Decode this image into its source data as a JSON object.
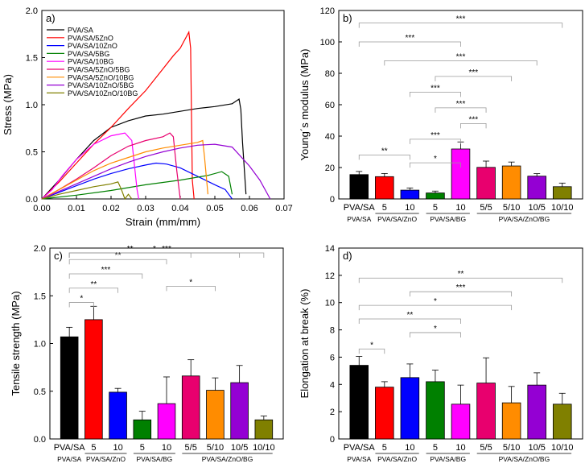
{
  "chart_data": [
    {
      "panel": "a)",
      "type": "line",
      "xlabel": "Strain (mm/mm)",
      "ylabel": "Stress (MPa)",
      "xlim": [
        0,
        0.07
      ],
      "ylim": [
        0,
        2.0
      ],
      "xticks": [
        "0.00",
        "0.01",
        "0.02",
        "0.03",
        "0.04",
        "0.05",
        "0.06",
        "0.07"
      ],
      "yticks": [
        "0.0",
        "0.5",
        "1.0",
        "1.5",
        "2.0"
      ],
      "legend_position": "top-left",
      "series": [
        {
          "name": "PVA/SA",
          "color": "#000000",
          "points": [
            [
              0,
              0
            ],
            [
              0.005,
              0.2
            ],
            [
              0.01,
              0.42
            ],
            [
              0.015,
              0.62
            ],
            [
              0.02,
              0.76
            ],
            [
              0.025,
              0.83
            ],
            [
              0.03,
              0.88
            ],
            [
              0.035,
              0.9
            ],
            [
              0.04,
              0.93
            ],
            [
              0.045,
              0.96
            ],
            [
              0.05,
              0.98
            ],
            [
              0.055,
              1.01
            ],
            [
              0.057,
              1.06
            ],
            [
              0.0575,
              0.95
            ],
            [
              0.058,
              0.6
            ],
            [
              0.059,
              0.05
            ]
          ]
        },
        {
          "name": "PVA/SA/5ZnO",
          "color": "#ff0000",
          "points": [
            [
              0,
              0
            ],
            [
              0.005,
              0.18
            ],
            [
              0.01,
              0.38
            ],
            [
              0.015,
              0.58
            ],
            [
              0.02,
              0.76
            ],
            [
              0.025,
              0.96
            ],
            [
              0.03,
              1.15
            ],
            [
              0.035,
              1.38
            ],
            [
              0.038,
              1.52
            ],
            [
              0.04,
              1.6
            ],
            [
              0.0425,
              1.77
            ],
            [
              0.043,
              1.6
            ],
            [
              0.0435,
              0.2
            ],
            [
              0.044,
              0
            ]
          ]
        },
        {
          "name": "PVA/SA/10ZnO",
          "color": "#0000ff",
          "points": [
            [
              0,
              0
            ],
            [
              0.005,
              0.07
            ],
            [
              0.01,
              0.14
            ],
            [
              0.015,
              0.21
            ],
            [
              0.02,
              0.27
            ],
            [
              0.025,
              0.32
            ],
            [
              0.03,
              0.36
            ],
            [
              0.033,
              0.38
            ],
            [
              0.036,
              0.37
            ],
            [
              0.04,
              0.33
            ],
            [
              0.045,
              0.24
            ],
            [
              0.05,
              0.15
            ],
            [
              0.053,
              0.1
            ],
            [
              0.055,
              0
            ]
          ]
        },
        {
          "name": "PVA/SA/5BG",
          "color": "#008000",
          "points": [
            [
              0,
              0
            ],
            [
              0.01,
              0.04
            ],
            [
              0.02,
              0.09
            ],
            [
              0.03,
              0.15
            ],
            [
              0.04,
              0.2
            ],
            [
              0.048,
              0.25
            ],
            [
              0.052,
              0.29
            ],
            [
              0.054,
              0.24
            ],
            [
              0.055,
              0.05
            ]
          ]
        },
        {
          "name": "PVA/SA/10BG",
          "color": "#ff00ff",
          "points": [
            [
              0,
              0
            ],
            [
              0.003,
              0.1
            ],
            [
              0.006,
              0.25
            ],
            [
              0.01,
              0.42
            ],
            [
              0.015,
              0.58
            ],
            [
              0.02,
              0.67
            ],
            [
              0.024,
              0.7
            ],
            [
              0.026,
              0.62
            ],
            [
              0.0275,
              0.1
            ],
            [
              0.028,
              0
            ]
          ]
        },
        {
          "name": "PVA/SA/5ZnO/5BG",
          "color": "#e8006e",
          "points": [
            [
              0,
              0
            ],
            [
              0.005,
              0.1
            ],
            [
              0.01,
              0.21
            ],
            [
              0.015,
              0.33
            ],
            [
              0.02,
              0.46
            ],
            [
              0.025,
              0.56
            ],
            [
              0.03,
              0.62
            ],
            [
              0.035,
              0.66
            ],
            [
              0.037,
              0.7
            ],
            [
              0.038,
              0.66
            ],
            [
              0.039,
              0.3
            ],
            [
              0.04,
              0
            ]
          ]
        },
        {
          "name": "PVA/SA/5ZnO/10BG",
          "color": "#ff8c00",
          "points": [
            [
              0,
              0
            ],
            [
              0.005,
              0.1
            ],
            [
              0.01,
              0.2
            ],
            [
              0.015,
              0.3
            ],
            [
              0.02,
              0.38
            ],
            [
              0.025,
              0.44
            ],
            [
              0.03,
              0.5
            ],
            [
              0.035,
              0.54
            ],
            [
              0.04,
              0.57
            ],
            [
              0.045,
              0.6
            ],
            [
              0.0465,
              0.62
            ],
            [
              0.047,
              0.45
            ],
            [
              0.048,
              0.05
            ]
          ]
        },
        {
          "name": "PVA/SA/10ZnO/5BG",
          "color": "#9400d3",
          "points": [
            [
              0,
              0
            ],
            [
              0.005,
              0.08
            ],
            [
              0.01,
              0.16
            ],
            [
              0.015,
              0.24
            ],
            [
              0.02,
              0.32
            ],
            [
              0.025,
              0.39
            ],
            [
              0.03,
              0.45
            ],
            [
              0.035,
              0.5
            ],
            [
              0.04,
              0.54
            ],
            [
              0.045,
              0.57
            ],
            [
              0.05,
              0.58
            ],
            [
              0.055,
              0.55
            ],
            [
              0.06,
              0.35
            ],
            [
              0.063,
              0.2
            ],
            [
              0.066,
              0
            ]
          ]
        },
        {
          "name": "PVA/SA/10ZnO/10BG",
          "color": "#808000",
          "points": [
            [
              0,
              0
            ],
            [
              0.005,
              0.05
            ],
            [
              0.01,
              0.09
            ],
            [
              0.015,
              0.13
            ],
            [
              0.02,
              0.16
            ],
            [
              0.022,
              0.18
            ],
            [
              0.023,
              0.1
            ],
            [
              0.024,
              0.0
            ],
            [
              0.025,
              0.05
            ],
            [
              0.026,
              0.0
            ]
          ]
        }
      ]
    },
    {
      "panel": "b)",
      "type": "bar",
      "ylabel": "Young´s modulus (MPa)",
      "ylim": [
        0,
        120
      ],
      "yticks": [
        "0",
        "20",
        "40",
        "60",
        "80",
        "100",
        "120"
      ],
      "categories": [
        "PVA/SA",
        "5",
        "10",
        "5",
        "10",
        "5/5",
        "5/10",
        "10/5",
        "10/10"
      ],
      "values": [
        15.5,
        14.2,
        5.6,
        3.8,
        31.8,
        20.1,
        21.0,
        14.5,
        7.8
      ],
      "errors": [
        2.0,
        2.0,
        1.4,
        1.2,
        4.5,
        4.0,
        2.5,
        1.6,
        2.3
      ],
      "colors": [
        "#000000",
        "#ff0000",
        "#0000ff",
        "#008000",
        "#ff00ff",
        "#e8006e",
        "#ff8c00",
        "#9400d3",
        "#808000"
      ],
      "group_labels": [
        "PVA/SA/ZnO",
        "PVA/SA/BG",
        "PVA/SA/ZnO/BG"
      ],
      "significance": [
        {
          "from": 2,
          "to": 4,
          "y": 23,
          "label": "*"
        },
        {
          "from": 0,
          "to": 2,
          "y": 28,
          "label": "**"
        },
        {
          "from": 2,
          "to": 4,
          "y": 38,
          "label": "***"
        },
        {
          "from": 4,
          "to": 5,
          "y": 48,
          "label": "***"
        },
        {
          "from": 3,
          "to": 5,
          "y": 58,
          "label": "***"
        },
        {
          "from": 4,
          "to": 2,
          "y": 68,
          "label": "***"
        },
        {
          "from": 3,
          "to": 6,
          "y": 78,
          "label": "***"
        },
        {
          "from": 1,
          "to": 7,
          "y": 88,
          "label": "***"
        },
        {
          "from": 0,
          "to": 4,
          "y": 100,
          "label": "***"
        },
        {
          "from": 0,
          "to": 8,
          "y": 112,
          "label": "***"
        }
      ]
    },
    {
      "panel": "c)",
      "type": "bar",
      "ylabel": "Tensile strength (MPa)",
      "ylim": [
        0,
        2.0
      ],
      "yticks": [
        "0.0",
        "0.5",
        "1.0",
        "1.5",
        "2.0"
      ],
      "categories": [
        "PVA/SA",
        "5",
        "10",
        "5",
        "10",
        "5/5",
        "5/10",
        "10/5",
        "10/10"
      ],
      "values": [
        1.07,
        1.25,
        0.49,
        0.2,
        0.37,
        0.66,
        0.51,
        0.59,
        0.2
      ],
      "errors": [
        0.1,
        0.14,
        0.04,
        0.09,
        0.28,
        0.17,
        0.13,
        0.18,
        0.04
      ],
      "colors": [
        "#000000",
        "#ff0000",
        "#0000ff",
        "#008000",
        "#ff00ff",
        "#e8006e",
        "#ff8c00",
        "#9400d3",
        "#808000"
      ],
      "group_labels": [
        "PVA/SA/ZnO",
        "PVA/SA/BG",
        "PVA/SA/ZnO/BG"
      ],
      "significance": [
        {
          "from": 0,
          "to": 1,
          "y": 1.43,
          "label": "*"
        },
        {
          "from": 0,
          "to": 2,
          "y": 1.58,
          "label": "**"
        },
        {
          "from": 0,
          "to": 3,
          "y": 1.73,
          "label": "***"
        },
        {
          "from": 4,
          "to": 6,
          "y": 1.6,
          "label": "*"
        },
        {
          "from": 0,
          "to": 4,
          "y": 1.88,
          "label": "**"
        },
        {
          "from": 0,
          "to": 5,
          "y": 2.03,
          "label": "**"
        },
        {
          "from": 0,
          "to": 7,
          "y": 2.18,
          "label": "*"
        },
        {
          "from": 0,
          "to": 8,
          "y": 2.32,
          "label": "***"
        }
      ]
    },
    {
      "panel": "d)",
      "type": "bar",
      "ylabel": "Elongation at break (%)",
      "ylim": [
        0,
        14
      ],
      "yticks": [
        "0",
        "2",
        "4",
        "6",
        "8",
        "10",
        "12",
        "14"
      ],
      "categories": [
        "PVA/SA",
        "5",
        "10",
        "5",
        "10",
        "5/5",
        "5/10",
        "10/5",
        "10/10"
      ],
      "values": [
        5.4,
        3.8,
        4.5,
        4.2,
        2.55,
        4.1,
        2.65,
        3.95,
        2.55
      ],
      "errors": [
        0.65,
        0.4,
        1.0,
        0.85,
        1.4,
        1.85,
        1.2,
        0.9,
        0.8
      ],
      "colors": [
        "#000000",
        "#ff0000",
        "#0000ff",
        "#008000",
        "#ff00ff",
        "#e8006e",
        "#ff8c00",
        "#9400d3",
        "#808000"
      ],
      "group_labels": [
        "PVA/SA/ZnO",
        "PVA/SA/BG",
        "PVA/SA/ZnO/BG"
      ],
      "significance": [
        {
          "from": 0,
          "to": 1,
          "y": 6.6,
          "label": "*"
        },
        {
          "from": 2,
          "to": 4,
          "y": 7.8,
          "label": "*"
        },
        {
          "from": 0,
          "to": 4,
          "y": 8.8,
          "label": "**"
        },
        {
          "from": 0,
          "to": 6,
          "y": 9.8,
          "label": "*"
        },
        {
          "from": 2,
          "to": 6,
          "y": 10.8,
          "label": "***"
        },
        {
          "from": 0,
          "to": 8,
          "y": 11.8,
          "label": "**"
        }
      ]
    }
  ]
}
